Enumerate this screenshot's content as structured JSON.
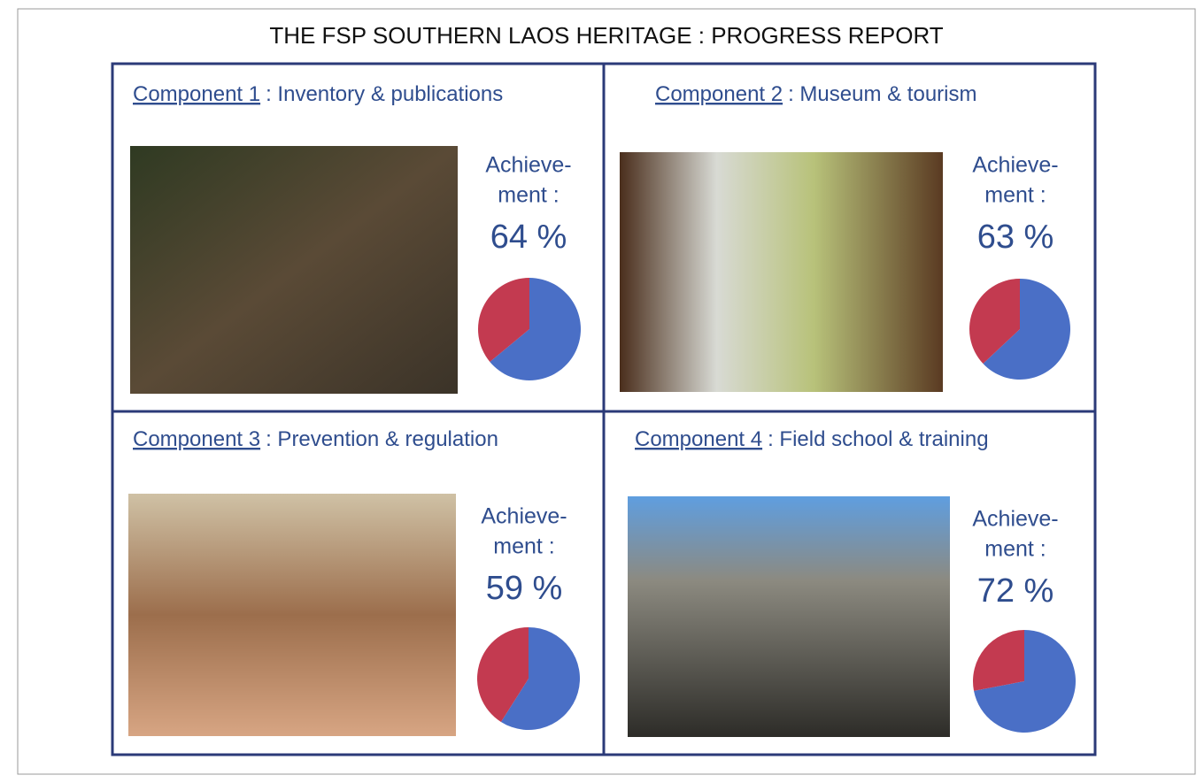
{
  "title": "THE FSP SOUTHERN LAOS HERITAGE : PROGRESS REPORT",
  "components": [
    {
      "label": "Component 1",
      "title": ": Inventory & publications",
      "achievement": [
        "Achieve-",
        "ment :"
      ],
      "value": 64,
      "value_label": "64 %"
    },
    {
      "label": "Component 2",
      "title": ": Museum & tourism",
      "achievement": [
        "Achieve-",
        "ment :"
      ],
      "value": 63,
      "value_label": "63 %"
    },
    {
      "label": "Component 3",
      "title": ": Prevention & regulation",
      "achievement": [
        "Achieve-",
        "ment :"
      ],
      "value": 59,
      "value_label": "59 %"
    },
    {
      "label": "Component 4",
      "title": ": Field school & training",
      "achievement": [
        "Achieve-",
        "ment :"
      ],
      "value": 72,
      "value_label": "72 %"
    }
  ]
}
